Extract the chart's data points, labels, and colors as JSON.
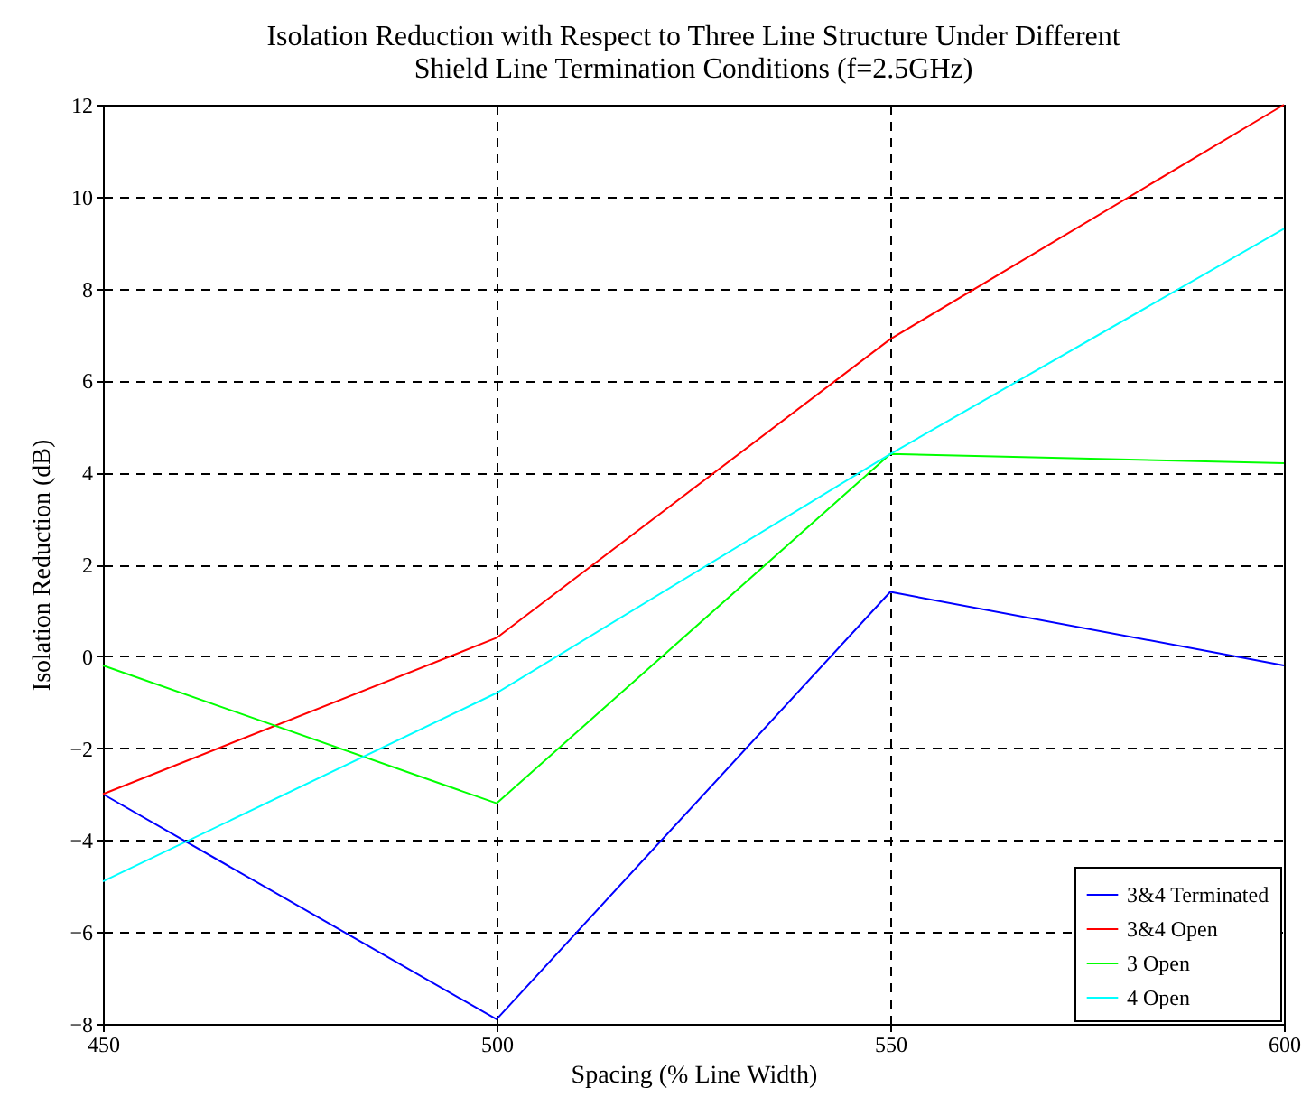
{
  "chart_data": {
    "type": "line",
    "title": "Isolation Reduction with Respect to Three Line Structure Under Different\nShield Line Termination Conditions (f=2.5GHz)",
    "xlabel": "Spacing (% Line Width)",
    "ylabel": "Isolation Reduction (dB)",
    "x": [
      450,
      500,
      550,
      600
    ],
    "series": [
      {
        "name": "3&4 Terminated",
        "color": "#0000ff",
        "values": [
          -3.0,
          -7.9,
          1.4,
          -0.2
        ]
      },
      {
        "name": "3&4 Open",
        "color": "#ff0000",
        "values": [
          -3.0,
          0.4,
          6.9,
          12.0
        ]
      },
      {
        "name": "3 Open",
        "color": "#00ff00",
        "values": [
          -0.2,
          -3.2,
          4.4,
          4.2
        ]
      },
      {
        "name": "4 Open",
        "color": "#00ffff",
        "values": [
          -4.9,
          -0.8,
          4.4,
          9.3
        ]
      }
    ],
    "xlim": [
      450,
      600
    ],
    "xticks": [
      450,
      500,
      550,
      600
    ],
    "ylim": [
      -8,
      12
    ],
    "yticks": [
      -8,
      -6,
      -4,
      -2,
      0,
      2,
      4,
      6,
      8,
      10,
      12
    ],
    "grid": true,
    "legend": "bottom right"
  }
}
